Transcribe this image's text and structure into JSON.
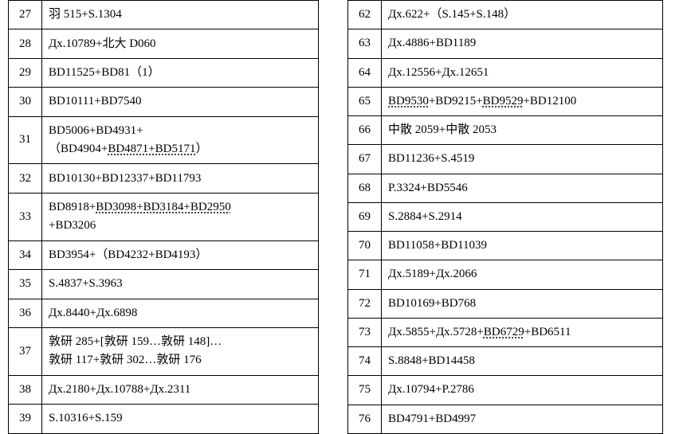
{
  "left": [
    {
      "n": "27",
      "html": "羽 515+S.1304"
    },
    {
      "n": "28",
      "html": "Дх.10789+北大 D060"
    },
    {
      "n": "29",
      "html": "BD11525+BD81（1）"
    },
    {
      "n": "30",
      "html": "BD10111+BD7540"
    },
    {
      "n": "31",
      "html": "BD5006+BD4931+<br>（BD4904+<span class=\"dot\">BD4871+BD5171</span>）"
    },
    {
      "n": "32",
      "html": "BD10130+BD12337+BD11793"
    },
    {
      "n": "33",
      "html": "BD8918+<span class=\"dot\">BD3098+BD3184+BD2950</span><br>+BD3206"
    },
    {
      "n": "34",
      "html": "BD3954+（BD4232+BD4193）"
    },
    {
      "n": "35",
      "html": "S.4837+S.3963"
    },
    {
      "n": "36",
      "html": "Дх.8440+Дх.6898"
    },
    {
      "n": "37",
      "html": "敦研 285+[敦研 159…敦研 148]…<br>敦研 117+敦研 302…敦研 176"
    },
    {
      "n": "38",
      "html": "Дх.2180+Дх.10788+Дх.2311"
    },
    {
      "n": "39",
      "html": "S.10316+S.159"
    }
  ],
  "right": [
    {
      "n": "62",
      "html": "Дх.622+（S.145+S.148）"
    },
    {
      "n": "63",
      "html": "Дх.4886+BD1189"
    },
    {
      "n": "64",
      "html": "Дх.12556+Дх.12651"
    },
    {
      "n": "65",
      "html": "<span class=\"dot\">BD9530</span>+BD9215+<span class=\"dot\">BD9529</span>+BD12100"
    },
    {
      "n": "66",
      "html": "中散 2059+中散 2053"
    },
    {
      "n": "67",
      "html": "BD11236+S.4519"
    },
    {
      "n": "68",
      "html": "P.3324+BD5546"
    },
    {
      "n": "69",
      "html": "S.2884+S.2914"
    },
    {
      "n": "70",
      "html": "BD11058+BD11039"
    },
    {
      "n": "71",
      "html": "Дх.5189+Дх.2066"
    },
    {
      "n": "72",
      "html": "BD10169+BD768"
    },
    {
      "n": "73",
      "html": "Дх.5855+Дх.5728+<span class=\"dot\">BD6729</span>+BD6511"
    },
    {
      "n": "74",
      "html": "S.8848+BD14458"
    },
    {
      "n": "75",
      "html": "Дх.10794+P.2786"
    },
    {
      "n": "76",
      "html": "BD4791+BD4997"
    }
  ]
}
